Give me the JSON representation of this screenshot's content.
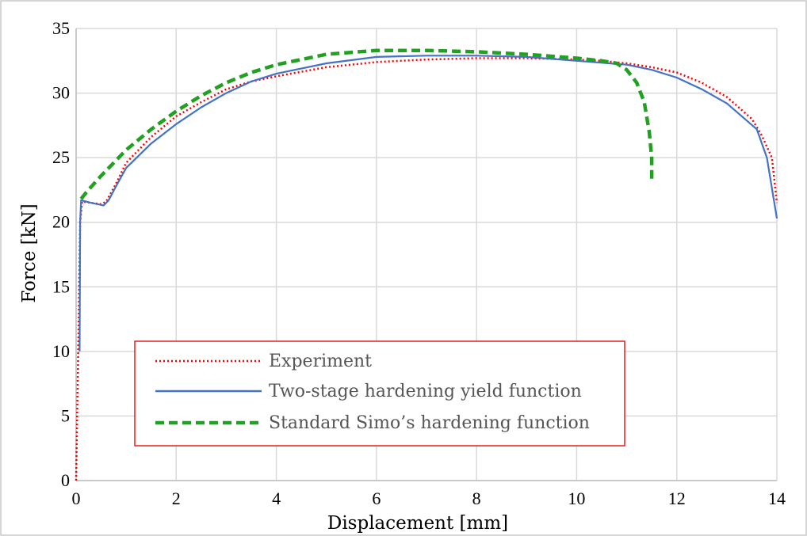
{
  "chart_data": {
    "type": "line",
    "xlabel": "Displacement [mm]",
    "ylabel": "Force [kN]",
    "xlim": [
      0,
      14
    ],
    "ylim": [
      0,
      35
    ],
    "xticks": [
      0,
      2,
      4,
      6,
      8,
      10,
      12,
      14
    ],
    "yticks": [
      0,
      5,
      10,
      15,
      20,
      25,
      30,
      35
    ],
    "grid": true,
    "legend_position": "bottom-center",
    "series": [
      {
        "name": "Experiment",
        "color": "#ff0000",
        "style": "dotted",
        "points": [
          [
            0,
            0
          ],
          [
            0.02,
            5
          ],
          [
            0.05,
            12
          ],
          [
            0.08,
            20
          ],
          [
            0.12,
            21.6
          ],
          [
            0.3,
            21.5
          ],
          [
            0.5,
            21.4
          ],
          [
            0.6,
            21.6
          ],
          [
            0.8,
            23
          ],
          [
            1,
            24.6
          ],
          [
            1.5,
            26.6
          ],
          [
            2,
            28.2
          ],
          [
            2.5,
            29.3
          ],
          [
            3,
            30.3
          ],
          [
            3.5,
            30.9
          ],
          [
            4,
            31.3
          ],
          [
            5,
            32
          ],
          [
            6,
            32.4
          ],
          [
            7,
            32.6
          ],
          [
            8,
            32.7
          ],
          [
            9,
            32.7
          ],
          [
            10,
            32.6
          ],
          [
            10.5,
            32.5
          ],
          [
            11,
            32.3
          ],
          [
            11.5,
            32
          ],
          [
            12,
            31.6
          ],
          [
            12.5,
            30.8
          ],
          [
            13,
            29.7
          ],
          [
            13.5,
            28
          ],
          [
            13.7,
            26.7
          ],
          [
            13.9,
            25
          ],
          [
            14,
            21.5
          ]
        ]
      },
      {
        "name": "Two-stage hardening yield function",
        "color": "#4472c4",
        "style": "solid",
        "points": [
          [
            0.07,
            10
          ],
          [
            0.08,
            20
          ],
          [
            0.1,
            21.7
          ],
          [
            0.3,
            21.5
          ],
          [
            0.55,
            21.3
          ],
          [
            0.65,
            21.7
          ],
          [
            0.8,
            22.8
          ],
          [
            1,
            24.2
          ],
          [
            1.5,
            26.1
          ],
          [
            2,
            27.6
          ],
          [
            2.5,
            28.9
          ],
          [
            3,
            30
          ],
          [
            3.5,
            30.9
          ],
          [
            4,
            31.5
          ],
          [
            5,
            32.3
          ],
          [
            6,
            32.8
          ],
          [
            7,
            32.9
          ],
          [
            8,
            32.9
          ],
          [
            9,
            32.8
          ],
          [
            10,
            32.5
          ],
          [
            11,
            32.2
          ],
          [
            11.5,
            31.8
          ],
          [
            12,
            31.2
          ],
          [
            12.5,
            30.3
          ],
          [
            13,
            29.2
          ],
          [
            13.6,
            27.2
          ],
          [
            13.8,
            25
          ],
          [
            14,
            20.3
          ]
        ]
      },
      {
        "name": "Standard Simo’s hardening function",
        "color": "#22a022",
        "style": "dashed",
        "points": [
          [
            0.1,
            21.8
          ],
          [
            0.2,
            22.3
          ],
          [
            0.5,
            23.6
          ],
          [
            1,
            25.6
          ],
          [
            1.5,
            27.2
          ],
          [
            2,
            28.6
          ],
          [
            2.5,
            29.8
          ],
          [
            3,
            30.8
          ],
          [
            3.5,
            31.6
          ],
          [
            4,
            32.2
          ],
          [
            4.5,
            32.6
          ],
          [
            5,
            33
          ],
          [
            6,
            33.3
          ],
          [
            7,
            33.3
          ],
          [
            8,
            33.2
          ],
          [
            9,
            33
          ],
          [
            10,
            32.7
          ],
          [
            10.5,
            32.5
          ],
          [
            10.8,
            32.3
          ],
          [
            11,
            31.8
          ],
          [
            11.2,
            30.8
          ],
          [
            11.35,
            29.3
          ],
          [
            11.45,
            27
          ],
          [
            11.5,
            25
          ],
          [
            11.5,
            23
          ]
        ]
      }
    ]
  }
}
